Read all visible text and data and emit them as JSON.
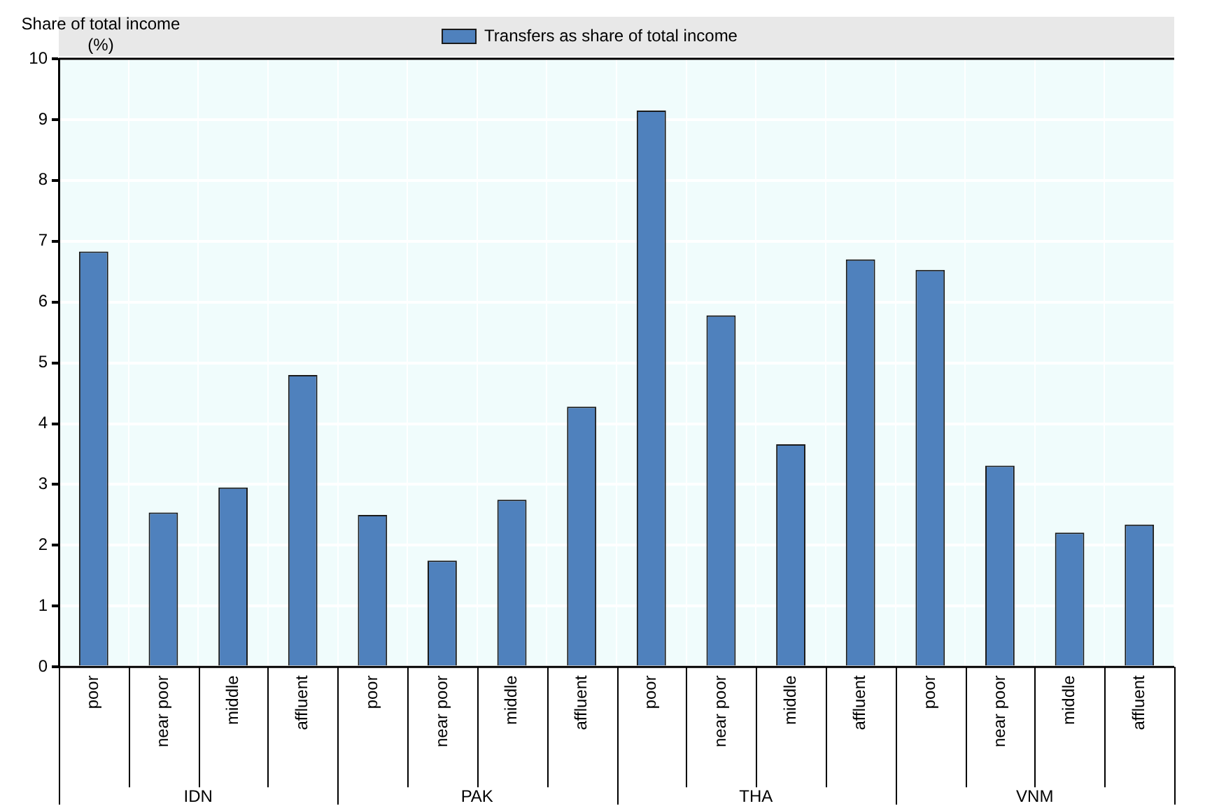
{
  "chart_data": {
    "type": "bar",
    "ylabel": "Share of total income (%)",
    "categories": [
      "poor",
      "near poor",
      "middle",
      "affluent",
      "poor",
      "near poor",
      "middle",
      "affluent",
      "poor",
      "near poor",
      "middle",
      "affluent",
      "poor",
      "near poor",
      "middle",
      "affluent"
    ],
    "annotations": [
      "IDN",
      "PAK",
      "THA",
      "VNM"
    ],
    "series": [
      {
        "name": "Transfers as share of total income",
        "color": "#4f81bd",
        "values": [
          6.83,
          2.54,
          2.95,
          4.8,
          2.5,
          1.75,
          2.75,
          4.28,
          9.15,
          5.78,
          3.66,
          6.7,
          6.53,
          3.31,
          2.21,
          2.34
        ]
      }
    ],
    "ylim": [
      0,
      10
    ],
    "yticks": [
      0,
      1,
      2,
      3,
      4,
      5,
      6,
      7,
      8,
      9,
      10
    ],
    "grid": true,
    "legend": "top"
  }
}
